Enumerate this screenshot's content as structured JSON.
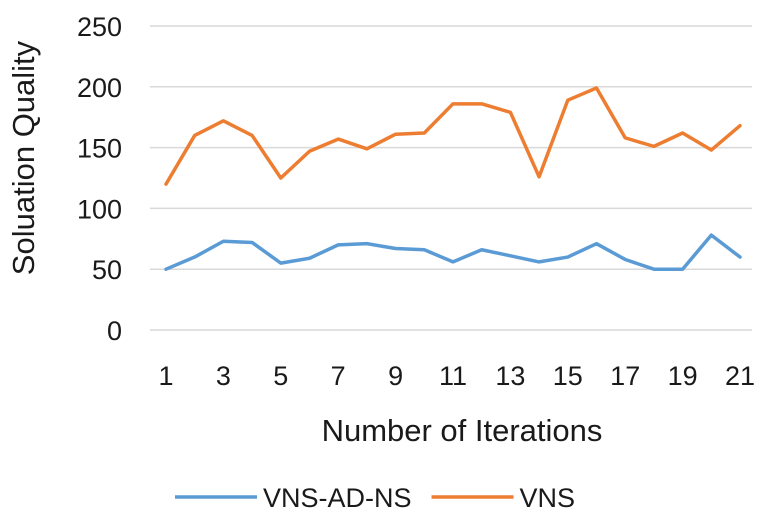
{
  "chart_data": {
    "type": "line",
    "xlabel": "Number of Iterations",
    "ylabel": "Soluation Quality",
    "ylim": [
      0,
      250
    ],
    "yticks": [
      0,
      50,
      100,
      150,
      200,
      250
    ],
    "x": [
      1,
      2,
      3,
      4,
      5,
      6,
      7,
      8,
      9,
      10,
      11,
      12,
      13,
      14,
      15,
      16,
      17,
      18,
      19,
      20,
      21
    ],
    "xtick_labels": [
      "1",
      "3",
      "5",
      "7",
      "9",
      "11",
      "13",
      "15",
      "17",
      "19",
      "21"
    ],
    "grid": "horizontal",
    "legend_position": "bottom",
    "series": [
      {
        "name": "VNS-AD-NS",
        "color": "#5b9bd5",
        "values": [
          50,
          60,
          73,
          72,
          55,
          59,
          70,
          71,
          67,
          66,
          56,
          66,
          61,
          56,
          60,
          71,
          58,
          50,
          50,
          78,
          60
        ]
      },
      {
        "name": "VNS",
        "color": "#ed7d31",
        "values": [
          120,
          160,
          172,
          160,
          125,
          147,
          157,
          149,
          161,
          162,
          186,
          186,
          179,
          126,
          189,
          199,
          158,
          151,
          162,
          148,
          168
        ]
      }
    ]
  }
}
